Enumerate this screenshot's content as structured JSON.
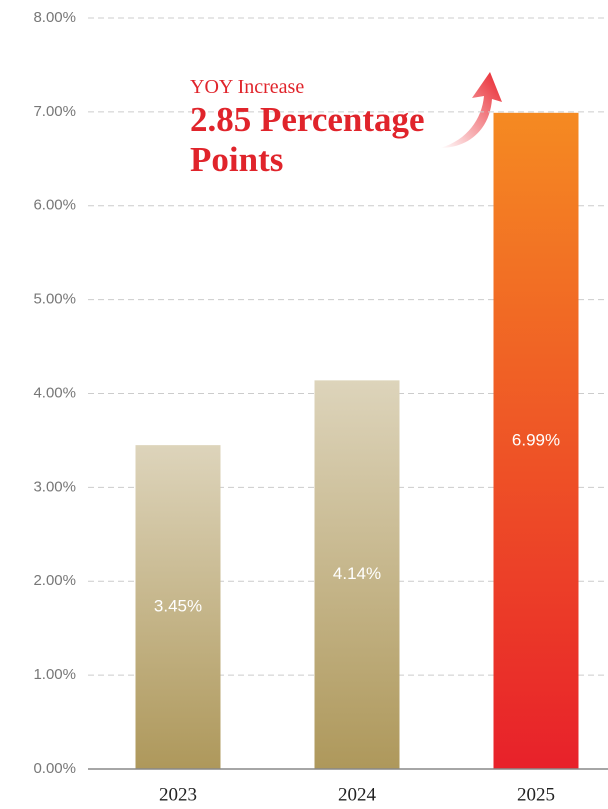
{
  "chart_data": {
    "type": "bar",
    "categories": [
      "2023",
      "2024",
      "2025"
    ],
    "values": [
      3.45,
      4.14,
      6.99
    ],
    "value_labels": [
      "3.45%",
      "4.14%",
      "6.99%"
    ],
    "colors": [
      [
        "#ddd4bb",
        "#ae985b"
      ],
      [
        "#ddd4bb",
        "#ae985b"
      ],
      [
        "#f58a22",
        "#e8212a"
      ]
    ],
    "ylim": [
      0,
      8
    ],
    "yticks": [
      {
        "value": 0,
        "label": "0.00%"
      },
      {
        "value": 1,
        "label": "1.00%"
      },
      {
        "value": 2,
        "label": "2.00%"
      },
      {
        "value": 3,
        "label": "3.00%"
      },
      {
        "value": 4,
        "label": "4.00%"
      },
      {
        "value": 5,
        "label": "5.00%"
      },
      {
        "value": 6,
        "label": "6.00%"
      },
      {
        "value": 7,
        "label": "7.00%"
      },
      {
        "value": 8,
        "label": "8.00%"
      }
    ],
    "grid": true,
    "annotation": {
      "subtitle": "YOY Increase",
      "text": "2.85 Percentage Points"
    }
  }
}
